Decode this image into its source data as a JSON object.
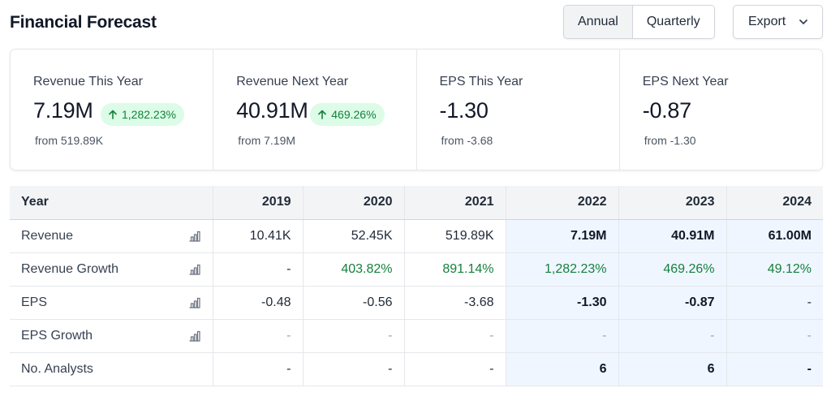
{
  "header": {
    "title": "Financial Forecast",
    "toggle": [
      "Annual",
      "Quarterly"
    ],
    "active_toggle": "Annual",
    "export_label": "Export"
  },
  "cards": [
    {
      "label": "Revenue This Year",
      "value": "7.19M",
      "badge": "1,282.23%",
      "from": "from 519.89K"
    },
    {
      "label": "Revenue Next Year",
      "value": "40.91M",
      "badge": "469.26%",
      "from": "from 7.19M"
    },
    {
      "label": "EPS This Year",
      "value": "-1.30",
      "badge": "",
      "from": "from -3.68"
    },
    {
      "label": "EPS Next Year",
      "value": "-0.87",
      "badge": "",
      "from": "from -1.30"
    }
  ],
  "table": {
    "header_label": "Year",
    "years": [
      "2019",
      "2020",
      "2021",
      "2022",
      "2023",
      "2024"
    ],
    "rows": [
      {
        "label": "Revenue",
        "values": [
          "10.41K",
          "52.45K",
          "519.89K",
          "7.19M",
          "40.91M",
          "61.00M"
        ]
      },
      {
        "label": "Revenue Growth",
        "values": [
          "-",
          "403.82%",
          "891.14%",
          "1,282.23%",
          "469.26%",
          "49.12%"
        ]
      },
      {
        "label": "EPS",
        "values": [
          "-0.48",
          "-0.56",
          "-3.68",
          "-1.30",
          "-0.87",
          "-"
        ]
      },
      {
        "label": "EPS Growth",
        "values": [
          "-",
          "-",
          "-",
          "-",
          "-",
          "-"
        ]
      },
      {
        "label": "No. Analysts",
        "values": [
          "-",
          "-",
          "-",
          "6",
          "6",
          "-"
        ]
      }
    ]
  },
  "colors": {
    "positive": "#15803d",
    "badge_bg": "#dcfce7",
    "projection_bg": "#eff6ff"
  }
}
